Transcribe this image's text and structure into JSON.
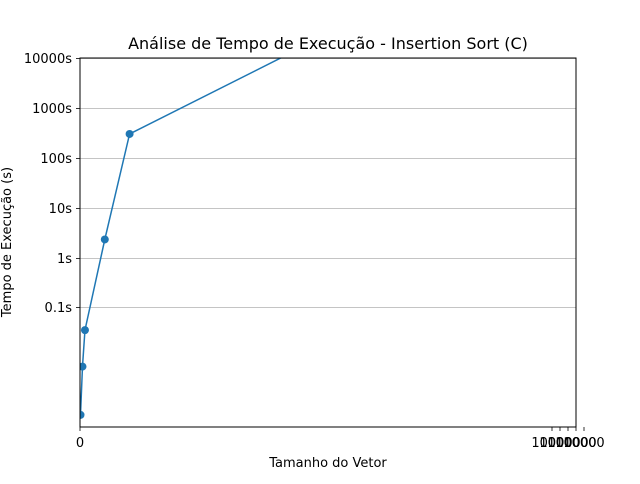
{
  "chart_data": {
    "type": "line",
    "title": "Análise de Tempo de Execução - Insertion Sort (C)",
    "xlabel": "Tamanho do Vetor",
    "ylabel": "Tempo de Execução (s)",
    "y_scale": "log",
    "grid": "y-major",
    "legend": "none",
    "x_tick_labels": [
      "0",
      "10000",
      "10000",
      "10000",
      "10000",
      "10000"
    ],
    "y_tick_values": [
      0.1,
      1,
      10,
      100,
      1000,
      10000
    ],
    "y_tick_labels": [
      "0.1s",
      "1s",
      "10s",
      "100s",
      "1000s",
      "10000s"
    ],
    "xlim": [
      0,
      1000000
    ],
    "ylim": [
      0.0004,
      10000
    ],
    "series": [
      {
        "x": [
          1000,
          5000,
          10000,
          50000,
          100000,
          500000
        ],
        "y": [
          0.0007,
          0.0065,
          0.035,
          2.3,
          300,
          30000
        ],
        "color": "#1f77b4"
      }
    ]
  }
}
